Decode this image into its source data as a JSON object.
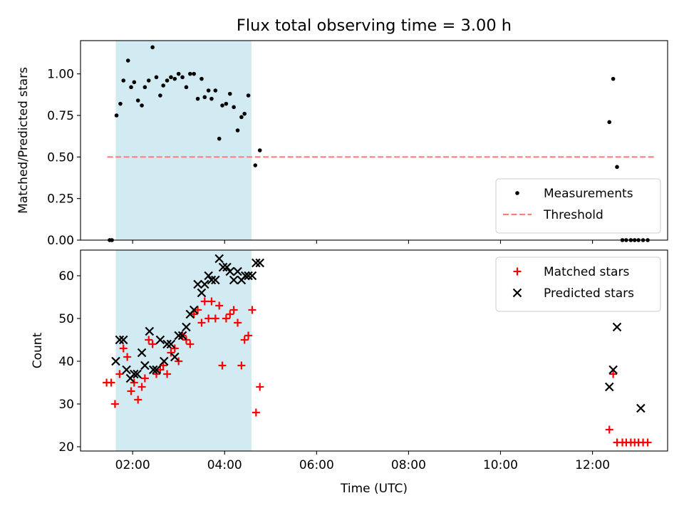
{
  "figure": {
    "title": "Flux total observing time = 3.00 h"
  },
  "colors": {
    "measurement": "#000000",
    "threshold": "#ff7f7f",
    "matched": "#ff0000",
    "predicted": "#000000",
    "span": "#add8e6"
  },
  "chart_data": [
    {
      "type": "scatter",
      "panel": "top",
      "title": "Flux total observing time = 3.00 h",
      "xlabel": "",
      "ylabel": "Matched/Predicted stars",
      "xlim": [
        "00:52",
        "13:38"
      ],
      "ylim": [
        0.0,
        1.2
      ],
      "yticks": [
        0.0,
        0.25,
        0.5,
        0.75,
        1.0
      ],
      "ytick_labels": [
        "0.00",
        "0.25",
        "0.50",
        "0.75",
        "1.00"
      ],
      "xticks": [
        "02:00",
        "04:00",
        "06:00",
        "08:00",
        "10:00",
        "12:00"
      ],
      "grid": false,
      "legend_position": "lower-right",
      "shaded_interval": [
        "01:38",
        "04:35"
      ],
      "threshold": {
        "name": "Threshold",
        "y": 0.5,
        "x_range": [
          "01:27",
          "13:21"
        ],
        "style": "dashed"
      },
      "series": [
        {
          "name": "Measurements",
          "marker": "dot",
          "points": [
            [
              "01:30",
              0.0
            ],
            [
              "01:33",
              0.0
            ],
            [
              "01:39",
              0.75
            ],
            [
              "01:44",
              0.82
            ],
            [
              "01:48",
              0.96
            ],
            [
              "01:54",
              1.08
            ],
            [
              "01:58",
              0.92
            ],
            [
              "02:02",
              0.95
            ],
            [
              "02:07",
              0.84
            ],
            [
              "02:12",
              0.81
            ],
            [
              "02:16",
              0.92
            ],
            [
              "02:21",
              0.96
            ],
            [
              "02:26",
              1.16
            ],
            [
              "02:31",
              0.98
            ],
            [
              "02:36",
              0.87
            ],
            [
              "02:40",
              0.93
            ],
            [
              "02:45",
              0.96
            ],
            [
              "02:50",
              0.98
            ],
            [
              "02:55",
              0.97
            ],
            [
              "03:00",
              1.0
            ],
            [
              "03:05",
              0.98
            ],
            [
              "03:10",
              0.92
            ],
            [
              "03:15",
              1.0
            ],
            [
              "03:20",
              1.0
            ],
            [
              "03:25",
              0.85
            ],
            [
              "03:30",
              0.97
            ],
            [
              "03:34",
              0.86
            ],
            [
              "03:39",
              0.9
            ],
            [
              "03:43",
              0.85
            ],
            [
              "03:48",
              0.9
            ],
            [
              "03:53",
              0.61
            ],
            [
              "03:57",
              0.81
            ],
            [
              "04:02",
              0.82
            ],
            [
              "04:07",
              0.88
            ],
            [
              "04:12",
              0.8
            ],
            [
              "04:17",
              0.66
            ],
            [
              "04:22",
              0.74
            ],
            [
              "04:26",
              0.76
            ],
            [
              "04:31",
              0.87
            ],
            [
              "04:40",
              0.45
            ],
            [
              "04:46",
              0.54
            ],
            [
              "12:22",
              0.71
            ],
            [
              "12:27",
              0.97
            ],
            [
              "12:32",
              0.44
            ],
            [
              "12:39",
              0.0
            ],
            [
              "12:44",
              0.0
            ],
            [
              "12:50",
              0.0
            ],
            [
              "12:55",
              0.0
            ],
            [
              "13:00",
              0.0
            ],
            [
              "13:06",
              0.0
            ],
            [
              "13:12",
              0.0
            ]
          ]
        }
      ]
    },
    {
      "type": "scatter",
      "panel": "bottom",
      "xlabel": "Time (UTC)",
      "ylabel": "Count",
      "xlim": [
        "00:52",
        "13:38"
      ],
      "ylim": [
        19,
        66
      ],
      "yticks": [
        20,
        30,
        40,
        50,
        60
      ],
      "xticks": [
        "02:00",
        "04:00",
        "06:00",
        "08:00",
        "10:00",
        "12:00"
      ],
      "grid": false,
      "legend_position": "upper-right",
      "shaded_interval": [
        "01:38",
        "04:35"
      ],
      "series": [
        {
          "name": "Matched stars",
          "marker": "plus",
          "points": [
            [
              "01:26",
              35
            ],
            [
              "01:32",
              35
            ],
            [
              "01:37",
              30
            ],
            [
              "01:43",
              37
            ],
            [
              "01:48",
              43
            ],
            [
              "01:53",
              41
            ],
            [
              "01:58",
              33
            ],
            [
              "02:02",
              35
            ],
            [
              "02:07",
              31
            ],
            [
              "02:12",
              34
            ],
            [
              "02:16",
              36
            ],
            [
              "02:21",
              45
            ],
            [
              "02:26",
              44
            ],
            [
              "02:31",
              37
            ],
            [
              "02:36",
              38
            ],
            [
              "02:40",
              39
            ],
            [
              "02:45",
              37
            ],
            [
              "02:50",
              42
            ],
            [
              "02:55",
              43
            ],
            [
              "03:00",
              40
            ],
            [
              "03:05",
              46
            ],
            [
              "03:10",
              45
            ],
            [
              "03:15",
              44
            ],
            [
              "03:20",
              51
            ],
            [
              "03:25",
              52
            ],
            [
              "03:30",
              49
            ],
            [
              "03:34",
              54
            ],
            [
              "03:39",
              50
            ],
            [
              "03:43",
              54
            ],
            [
              "03:48",
              50
            ],
            [
              "03:53",
              53
            ],
            [
              "03:57",
              39
            ],
            [
              "04:02",
              50
            ],
            [
              "04:07",
              51
            ],
            [
              "04:12",
              52
            ],
            [
              "04:17",
              49
            ],
            [
              "04:22",
              39
            ],
            [
              "04:26",
              45
            ],
            [
              "04:31",
              46
            ],
            [
              "04:36",
              52
            ],
            [
              "04:41",
              28
            ],
            [
              "04:46",
              34
            ],
            [
              "12:22",
              24
            ],
            [
              "12:27",
              37
            ],
            [
              "12:32",
              21
            ],
            [
              "12:39",
              21
            ],
            [
              "12:44",
              21
            ],
            [
              "12:50",
              21
            ],
            [
              "12:55",
              21
            ],
            [
              "13:00",
              21
            ],
            [
              "13:06",
              21
            ],
            [
              "13:12",
              21
            ]
          ]
        },
        {
          "name": "Predicted stars",
          "marker": "x",
          "points": [
            [
              "01:38",
              40
            ],
            [
              "01:43",
              45
            ],
            [
              "01:48",
              45
            ],
            [
              "01:52",
              38
            ],
            [
              "01:57",
              36
            ],
            [
              "02:02",
              37
            ],
            [
              "02:06",
              37
            ],
            [
              "02:12",
              42
            ],
            [
              "02:16",
              39
            ],
            [
              "02:22",
              47
            ],
            [
              "02:27",
              38
            ],
            [
              "02:31",
              38
            ],
            [
              "02:36",
              45
            ],
            [
              "02:41",
              40
            ],
            [
              "02:45",
              44
            ],
            [
              "02:50",
              44
            ],
            [
              "02:55",
              41
            ],
            [
              "03:00",
              46
            ],
            [
              "03:05",
              46
            ],
            [
              "03:10",
              48
            ],
            [
              "03:15",
              51
            ],
            [
              "03:20",
              52
            ],
            [
              "03:25",
              58
            ],
            [
              "03:30",
              56
            ],
            [
              "03:34",
              58
            ],
            [
              "03:39",
              60
            ],
            [
              "03:43",
              59
            ],
            [
              "03:48",
              59
            ],
            [
              "03:53",
              64
            ],
            [
              "03:58",
              62
            ],
            [
              "04:03",
              62
            ],
            [
              "04:07",
              61
            ],
            [
              "04:12",
              59
            ],
            [
              "04:17",
              61
            ],
            [
              "04:22",
              59
            ],
            [
              "04:27",
              60
            ],
            [
              "04:31",
              60
            ],
            [
              "04:36",
              60
            ],
            [
              "04:41",
              63
            ],
            [
              "04:46",
              63
            ],
            [
              "12:22",
              34
            ],
            [
              "12:27",
              38
            ],
            [
              "12:32",
              48
            ],
            [
              "13:03",
              29
            ]
          ]
        }
      ]
    }
  ]
}
